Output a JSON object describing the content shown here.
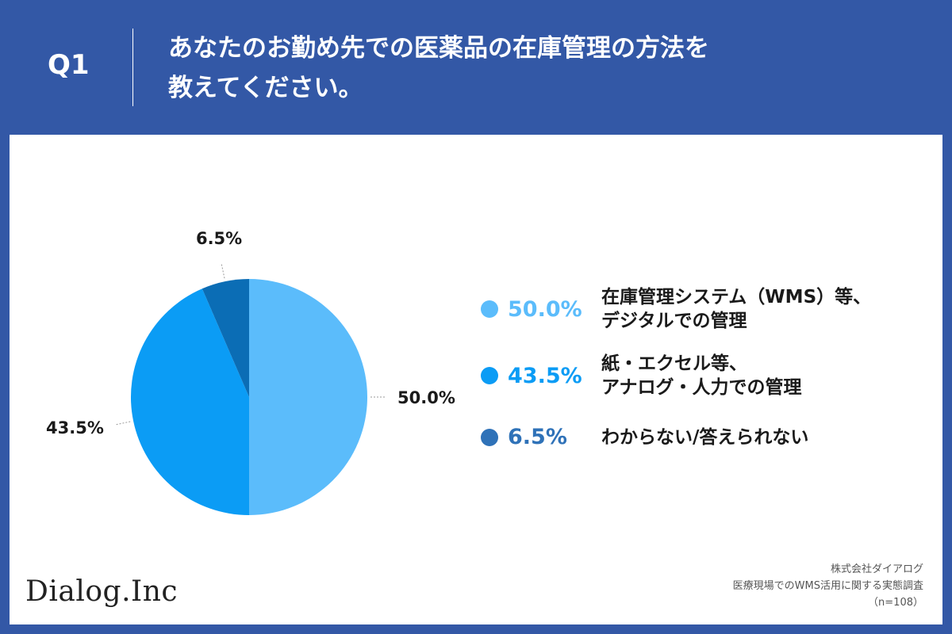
{
  "header": {
    "q_number": "Q1",
    "title_line1": "あなたのお勤め先での医薬品の在庫管理の方法を",
    "title_line2": "教えてください。"
  },
  "chart_data": {
    "type": "pie",
    "categories": [
      "在庫管理システム（WMS）等、デジタルでの管理",
      "紙・エクセル等、アナログ・人力での管理",
      "わからない/答えられない"
    ],
    "values": [
      50.0,
      43.5,
      6.5
    ],
    "labels": [
      "50.0%",
      "43.5%",
      "6.5%"
    ],
    "colors": [
      "#5bbcfb",
      "#0b9cf5",
      "#0b6db5"
    ],
    "legend_placement": "right"
  },
  "legend": {
    "items": [
      {
        "pct": "50.0%",
        "line1": "在庫管理システム（WMS）等、",
        "line2": "デジタルでの管理",
        "color": "#5bbcfb"
      },
      {
        "pct": "43.5%",
        "line1": "紙・エクセル等、",
        "line2": "アナログ・人力での管理",
        "color": "#0b9cf5"
      },
      {
        "pct": "6.5%",
        "line1": "わからない/答えられない",
        "line2": "",
        "color": "#2f72b8"
      }
    ]
  },
  "footer": {
    "logo": "Dialog.Inc",
    "source_line1": "株式会社ダイアログ",
    "source_line2": "医療現場でのWMS活用に関する実態調査",
    "source_line3": "（n=108）"
  }
}
